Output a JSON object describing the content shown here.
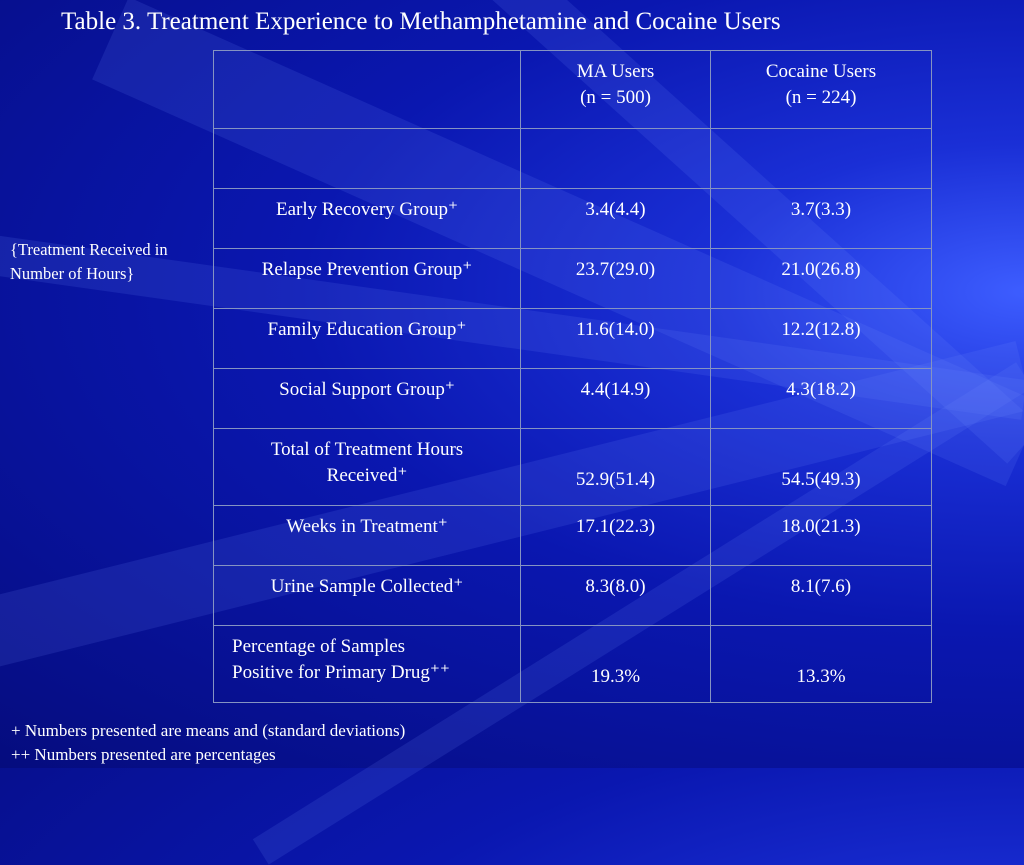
{
  "title": "Table 3. Treatment Experience to Methamphetamine and Cocaine Users",
  "side_note": "{Treatment Received in Number of  Hours}",
  "columns": [
    {
      "line1": "MA Users",
      "line2": "(n = 500)"
    },
    {
      "line1": "Cocaine Users",
      "line2": "(n = 224)"
    }
  ],
  "rows": [
    {
      "label": "Early Recovery Group⁺",
      "ma": "3.4(4.4)",
      "cocaine": "3.7(3.3)"
    },
    {
      "label": "Relapse Prevention Group⁺",
      "ma": "23.7(29.0)",
      "cocaine": "21.0(26.8)"
    },
    {
      "label": "Family Education Group⁺",
      "ma": "11.6(14.0)",
      "cocaine": "12.2(12.8)"
    },
    {
      "label": "Social Support Group⁺",
      "ma": "4.4(14.9)",
      "cocaine": "4.3(18.2)"
    },
    {
      "label_line1": "Total of Treatment Hours",
      "label_line2": "Received⁺",
      "ma": "52.9(51.4)",
      "cocaine": "54.5(49.3)"
    },
    {
      "label": "Weeks in Treatment⁺",
      "ma": "17.1(22.3)",
      "cocaine": "18.0(21.3)"
    },
    {
      "label": "Urine Sample Collected⁺",
      "ma": "8.3(8.0)",
      "cocaine": "8.1(7.6)"
    },
    {
      "label_line1": "Percentage of Samples",
      "label_line2": "Positive for Primary Drug⁺⁺",
      "ma": "19.3%",
      "cocaine": "13.3%"
    }
  ],
  "footnotes": [
    "+ Numbers presented are means and (standard deviations)",
    "++ Numbers presented are percentages"
  ]
}
